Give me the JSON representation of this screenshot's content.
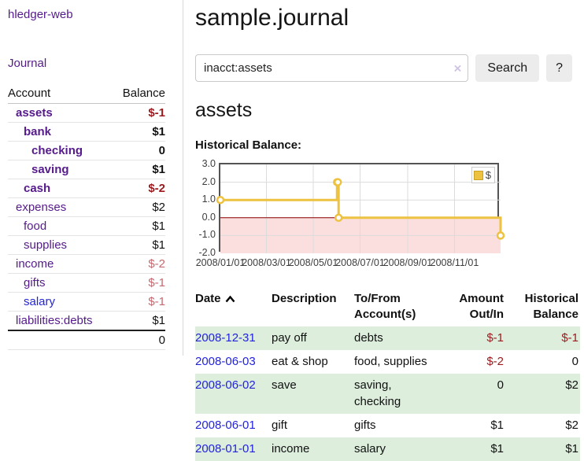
{
  "brand": "hledger-web",
  "nav": {
    "journal": "Journal"
  },
  "sidebar": {
    "header": {
      "account": "Account",
      "balance": "Balance"
    },
    "accounts": [
      {
        "name": "assets",
        "balance": "$-1"
      },
      {
        "name": "bank",
        "balance": "$1"
      },
      {
        "name": "checking",
        "balance": "0"
      },
      {
        "name": "saving",
        "balance": "$1"
      },
      {
        "name": "cash",
        "balance": "$-2"
      },
      {
        "name": "expenses",
        "balance": "$2"
      },
      {
        "name": "food",
        "balance": "$1"
      },
      {
        "name": "supplies",
        "balance": "$1"
      },
      {
        "name": "income",
        "balance": "$-2"
      },
      {
        "name": "gifts",
        "balance": "$-1"
      },
      {
        "name": "salary",
        "balance": "$-1"
      },
      {
        "name": "liabilities:debts",
        "balance": "$1"
      }
    ],
    "total": "0"
  },
  "main": {
    "title": "sample.journal",
    "search": {
      "value": "inacct:assets",
      "clear_icon": "×",
      "search_button": "Search",
      "help_button": "?"
    },
    "account_title": "assets",
    "chart_title": "Historical Balance:"
  },
  "chart_data": {
    "type": "line",
    "step": true,
    "title": "Historical Balance:",
    "series": [
      {
        "name": "$",
        "color": "#edc240",
        "points": [
          [
            "2008-01-01",
            1
          ],
          [
            "2008-06-01",
            2
          ],
          [
            "2008-06-02",
            2
          ],
          [
            "2008-06-03",
            0
          ],
          [
            "2008-12-31",
            -1
          ]
        ]
      }
    ],
    "x_range": [
      "2008-01-01",
      "2008-12-31"
    ],
    "x_ticks": [
      "2008/01/01",
      "2008/03/01",
      "2008/05/01",
      "2008/07/01",
      "2008/09/01",
      "2008/11/01"
    ],
    "y_ticks": [
      "3.0",
      "2.0",
      "1.0",
      "0.0",
      "-1.0",
      "-2.0"
    ],
    "ylim": [
      -2,
      3
    ],
    "grid": true,
    "legend": {
      "label": "$",
      "position": "top-right"
    },
    "negative_region_color": "#fbdfdf",
    "zero_line_color": "#8f0000",
    "sort_icon": "caret-up"
  },
  "register": {
    "headers": {
      "date": "Date",
      "description": "Description",
      "tofrom": "To/From Account(s)",
      "amount": "Amount Out/In",
      "historical": "Historical Balance"
    },
    "rows": [
      {
        "date": "2008-12-31",
        "description": "pay off",
        "accounts": "debts",
        "amount": "$-1",
        "balance": "$-1"
      },
      {
        "date": "2008-06-03",
        "description": "eat & shop",
        "accounts": "food, supplies",
        "amount": "$-2",
        "balance": "0"
      },
      {
        "date": "2008-06-02",
        "description": "save",
        "accounts": "saving, checking",
        "amount": "0",
        "balance": "$2"
      },
      {
        "date": "2008-06-01",
        "description": "gift",
        "accounts": "gifts",
        "amount": "$1",
        "balance": "$2"
      },
      {
        "date": "2008-01-01",
        "description": "income",
        "accounts": "salary",
        "amount": "$1",
        "balance": "$1"
      }
    ]
  }
}
